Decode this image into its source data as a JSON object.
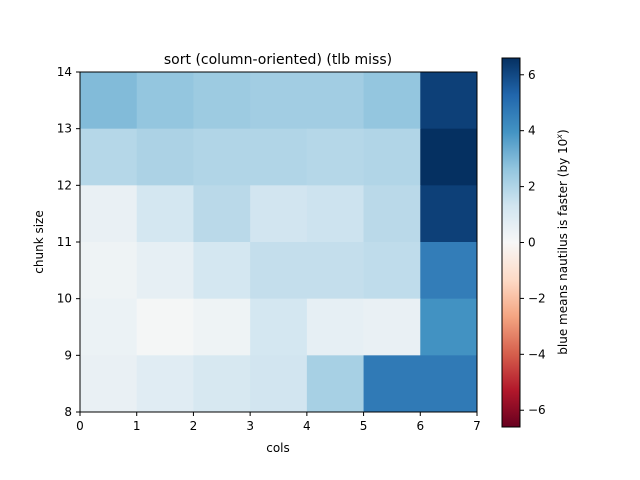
{
  "chart_data": {
    "type": "heatmap",
    "title": "sort (column-oriented) (tlb miss)",
    "xlabel": "cols",
    "ylabel": "chunk size",
    "x_ticks": [
      0,
      1,
      2,
      3,
      4,
      5,
      6,
      7
    ],
    "y_ticks": [
      8,
      9,
      10,
      11,
      12,
      13,
      14
    ],
    "xlim": [
      0,
      7
    ],
    "ylim": [
      8,
      14
    ],
    "colormap": "RdBu",
    "vmin": -6.6,
    "vmax": 6.6,
    "colorbar": {
      "label_prefix": "blue means nautilus is faster (by 10",
      "label_sup": "x",
      "label_suffix": ")",
      "ticks": [
        6,
        4,
        2,
        0,
        -2,
        -4,
        -6
      ],
      "tick_labels": [
        "6",
        "4",
        "2",
        "0",
        "−2",
        "−4",
        "−6"
      ]
    },
    "rows": [
      {
        "y": 13,
        "values": [
          2.9,
          2.6,
          2.4,
          2.3,
          2.3,
          2.6,
          6.2
        ]
      },
      {
        "y": 12,
        "values": [
          1.9,
          2.1,
          2.0,
          2.0,
          1.9,
          2.0,
          6.7
        ]
      },
      {
        "y": 11,
        "values": [
          0.5,
          1.2,
          1.8,
          1.3,
          1.4,
          1.8,
          6.2
        ]
      },
      {
        "y": 10,
        "values": [
          0.3,
          0.6,
          1.2,
          1.6,
          1.6,
          1.7,
          4.6
        ]
      },
      {
        "y": 9,
        "values": [
          0.4,
          0.1,
          0.3,
          1.2,
          0.6,
          0.5,
          4.0
        ]
      },
      {
        "y": 8,
        "values": [
          0.5,
          0.8,
          1.1,
          1.3,
          2.2,
          4.7,
          4.7
        ]
      }
    ]
  }
}
